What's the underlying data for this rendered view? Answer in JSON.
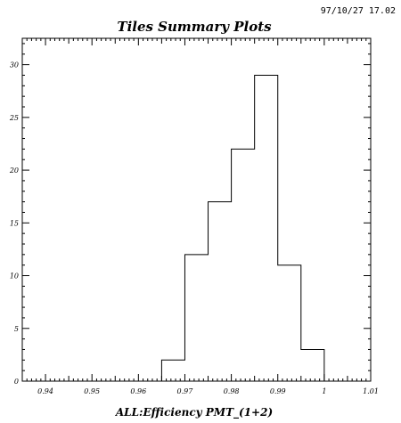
{
  "timestamp": "97/10/27  17.02",
  "chart_data": {
    "type": "bar",
    "title": "Tiles Summary Plots",
    "xlabel": "ALL:Efficiency PMT_(1+2)",
    "ylabel": "",
    "xlim": [
      0.935,
      1.01
    ],
    "ylim": [
      0,
      32.5
    ],
    "x_ticks": [
      "0.94",
      "0.95",
      "0.96",
      "0.97",
      "0.98",
      "0.99",
      "1",
      "1.01"
    ],
    "y_ticks": [
      "0",
      "5",
      "10",
      "15",
      "20",
      "25",
      "30"
    ],
    "bin_edges": [
      0.965,
      0.97,
      0.975,
      0.98,
      0.985,
      0.99,
      0.995,
      1.0
    ],
    "values": [
      2,
      12,
      17,
      22,
      29,
      11,
      3
    ],
    "line_color": "#000000"
  }
}
